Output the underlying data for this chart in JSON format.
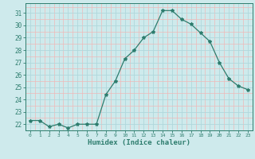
{
  "x": [
    0,
    1,
    2,
    3,
    4,
    5,
    6,
    7,
    8,
    9,
    10,
    11,
    12,
    13,
    14,
    15,
    16,
    17,
    18,
    19,
    20,
    21,
    22,
    23
  ],
  "y": [
    22.3,
    22.3,
    21.8,
    22.0,
    21.7,
    22.0,
    22.0,
    22.0,
    24.4,
    25.5,
    27.3,
    28.0,
    29.0,
    29.5,
    31.2,
    31.2,
    30.5,
    30.1,
    29.4,
    28.7,
    27.0,
    25.7,
    25.1,
    24.8
  ],
  "line_color": "#2e7d6e",
  "bg_color": "#ceeaec",
  "grid_color_major": "#b0d8dc",
  "grid_color_minor": "#f0b8b8",
  "xlabel": "Humidex (Indice chaleur)",
  "ylim": [
    21.5,
    31.8
  ],
  "yticks": [
    22,
    23,
    24,
    25,
    26,
    27,
    28,
    29,
    30,
    31
  ],
  "xlim": [
    -0.5,
    23.5
  ],
  "xticks": [
    0,
    1,
    2,
    3,
    4,
    5,
    6,
    7,
    8,
    9,
    10,
    11,
    12,
    13,
    14,
    15,
    16,
    17,
    18,
    19,
    20,
    21,
    22,
    23
  ],
  "tick_color": "#2e7d6e",
  "label_color": "#2e7d6e",
  "spine_color": "#2e7d6e"
}
